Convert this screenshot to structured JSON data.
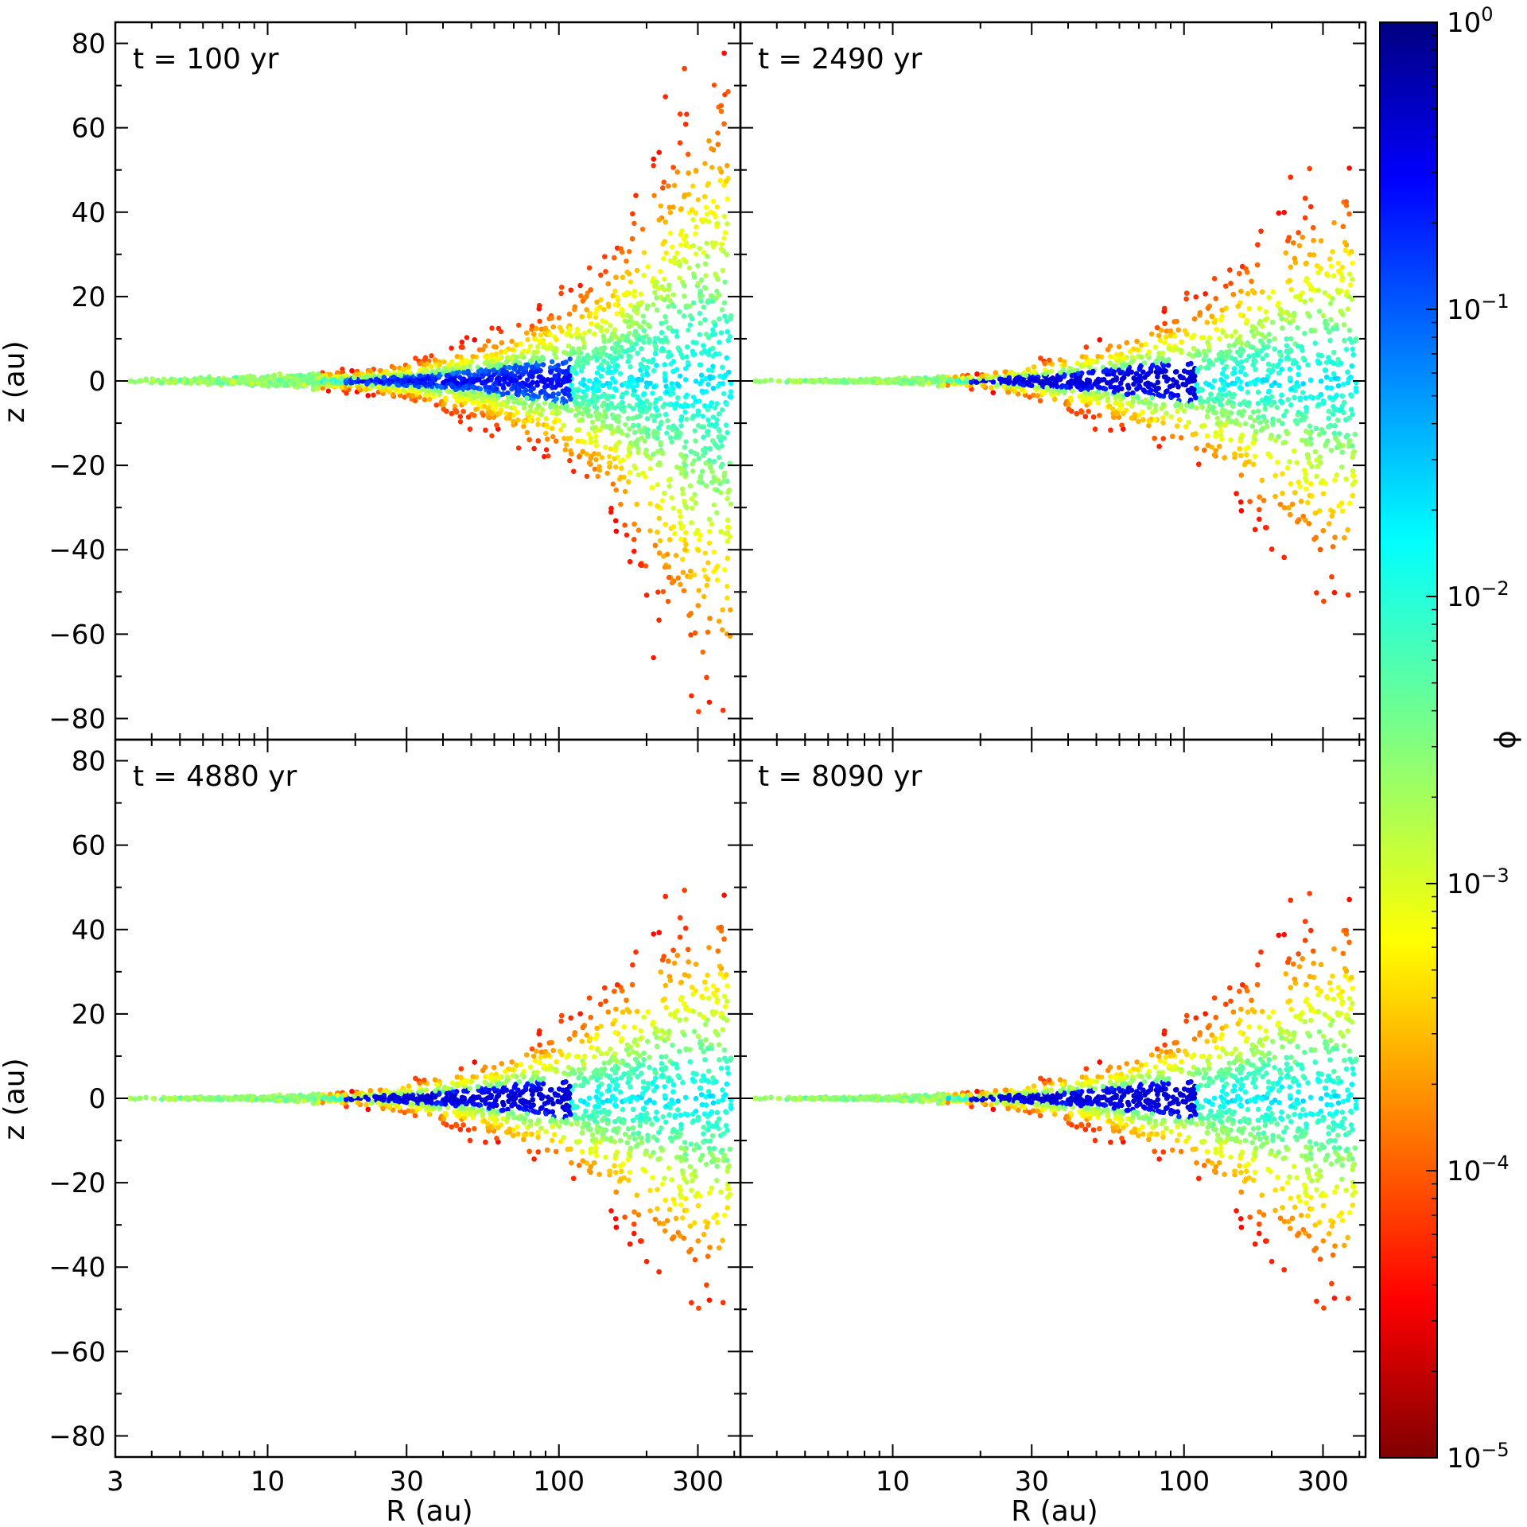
{
  "chart_data": {
    "type": "scatter",
    "xlabel": "R (au)",
    "ylabel": "z (au)",
    "xscale": "log",
    "xlim": [
      3,
      420
    ],
    "ylim": [
      -85,
      85
    ],
    "xticks": [
      {
        "value": 3,
        "label": "3"
      },
      {
        "value": 10,
        "label": "10"
      },
      {
        "value": 30,
        "label": "30"
      },
      {
        "value": 100,
        "label": "100"
      },
      {
        "value": 300,
        "label": "300"
      }
    ],
    "yticks": [
      {
        "value": 80,
        "label": "80"
      },
      {
        "value": 60,
        "label": "60"
      },
      {
        "value": 40,
        "label": "40"
      },
      {
        "value": 20,
        "label": "20"
      },
      {
        "value": 0,
        "label": "0"
      },
      {
        "value": -20,
        "label": "−20"
      },
      {
        "value": -40,
        "label": "−40"
      },
      {
        "value": -60,
        "label": "−60"
      },
      {
        "value": -80,
        "label": "−80"
      }
    ],
    "panels": [
      {
        "t_label": "t = 100 yr",
        "profile": [
          [
            3,
            0.3
          ],
          [
            10,
            1.2
          ],
          [
            20,
            2.2
          ],
          [
            30,
            4
          ],
          [
            50,
            8
          ],
          [
            70,
            12
          ],
          [
            100,
            17
          ],
          [
            150,
            27
          ],
          [
            200,
            42
          ],
          [
            250,
            55
          ],
          [
            300,
            63
          ],
          [
            380,
            68
          ]
        ],
        "core": 0.45,
        "outer": 0.92
      },
      {
        "t_label": "t = 2490 yr",
        "profile": [
          [
            3,
            0.2
          ],
          [
            10,
            0.5
          ],
          [
            20,
            1.5
          ],
          [
            30,
            4
          ],
          [
            50,
            8
          ],
          [
            70,
            12
          ],
          [
            100,
            16
          ],
          [
            150,
            24
          ],
          [
            200,
            33
          ],
          [
            250,
            38
          ],
          [
            300,
            42
          ],
          [
            380,
            44
          ]
        ],
        "core": 0.3,
        "outer": 0.86
      },
      {
        "t_label": "t = 4880 yr",
        "profile": [
          [
            3,
            0.2
          ],
          [
            10,
            0.5
          ],
          [
            20,
            1.5
          ],
          [
            30,
            3.5
          ],
          [
            50,
            7
          ],
          [
            70,
            11
          ],
          [
            100,
            15
          ],
          [
            150,
            24
          ],
          [
            200,
            32
          ],
          [
            250,
            38
          ],
          [
            300,
            40
          ],
          [
            380,
            42
          ]
        ],
        "core": 0.3,
        "outer": 0.84
      },
      {
        "t_label": "t = 8090 yr",
        "profile": [
          [
            3,
            0.2
          ],
          [
            10,
            0.5
          ],
          [
            20,
            1.5
          ],
          [
            30,
            3.5
          ],
          [
            50,
            7
          ],
          [
            70,
            11
          ],
          [
            100,
            15
          ],
          [
            150,
            24
          ],
          [
            200,
            32
          ],
          [
            250,
            37
          ],
          [
            300,
            40
          ],
          [
            380,
            41
          ]
        ],
        "core": 0.28,
        "outer": 0.84
      }
    ],
    "colorbar": {
      "label": "ϕ",
      "scale": "log",
      "range": [
        1e-05,
        1
      ],
      "ticks": [
        {
          "value": 1,
          "label": "10",
          "exp": "0"
        },
        {
          "value": 0.1,
          "label": "10",
          "exp": "−1"
        },
        {
          "value": 0.01,
          "label": "10",
          "exp": "−2"
        },
        {
          "value": 0.001,
          "label": "10",
          "exp": "−3"
        },
        {
          "value": 0.0001,
          "label": "10",
          "exp": "−4"
        },
        {
          "value": 1e-05,
          "label": "10",
          "exp": "−5"
        }
      ],
      "colormap": "jet (reversed)"
    }
  }
}
